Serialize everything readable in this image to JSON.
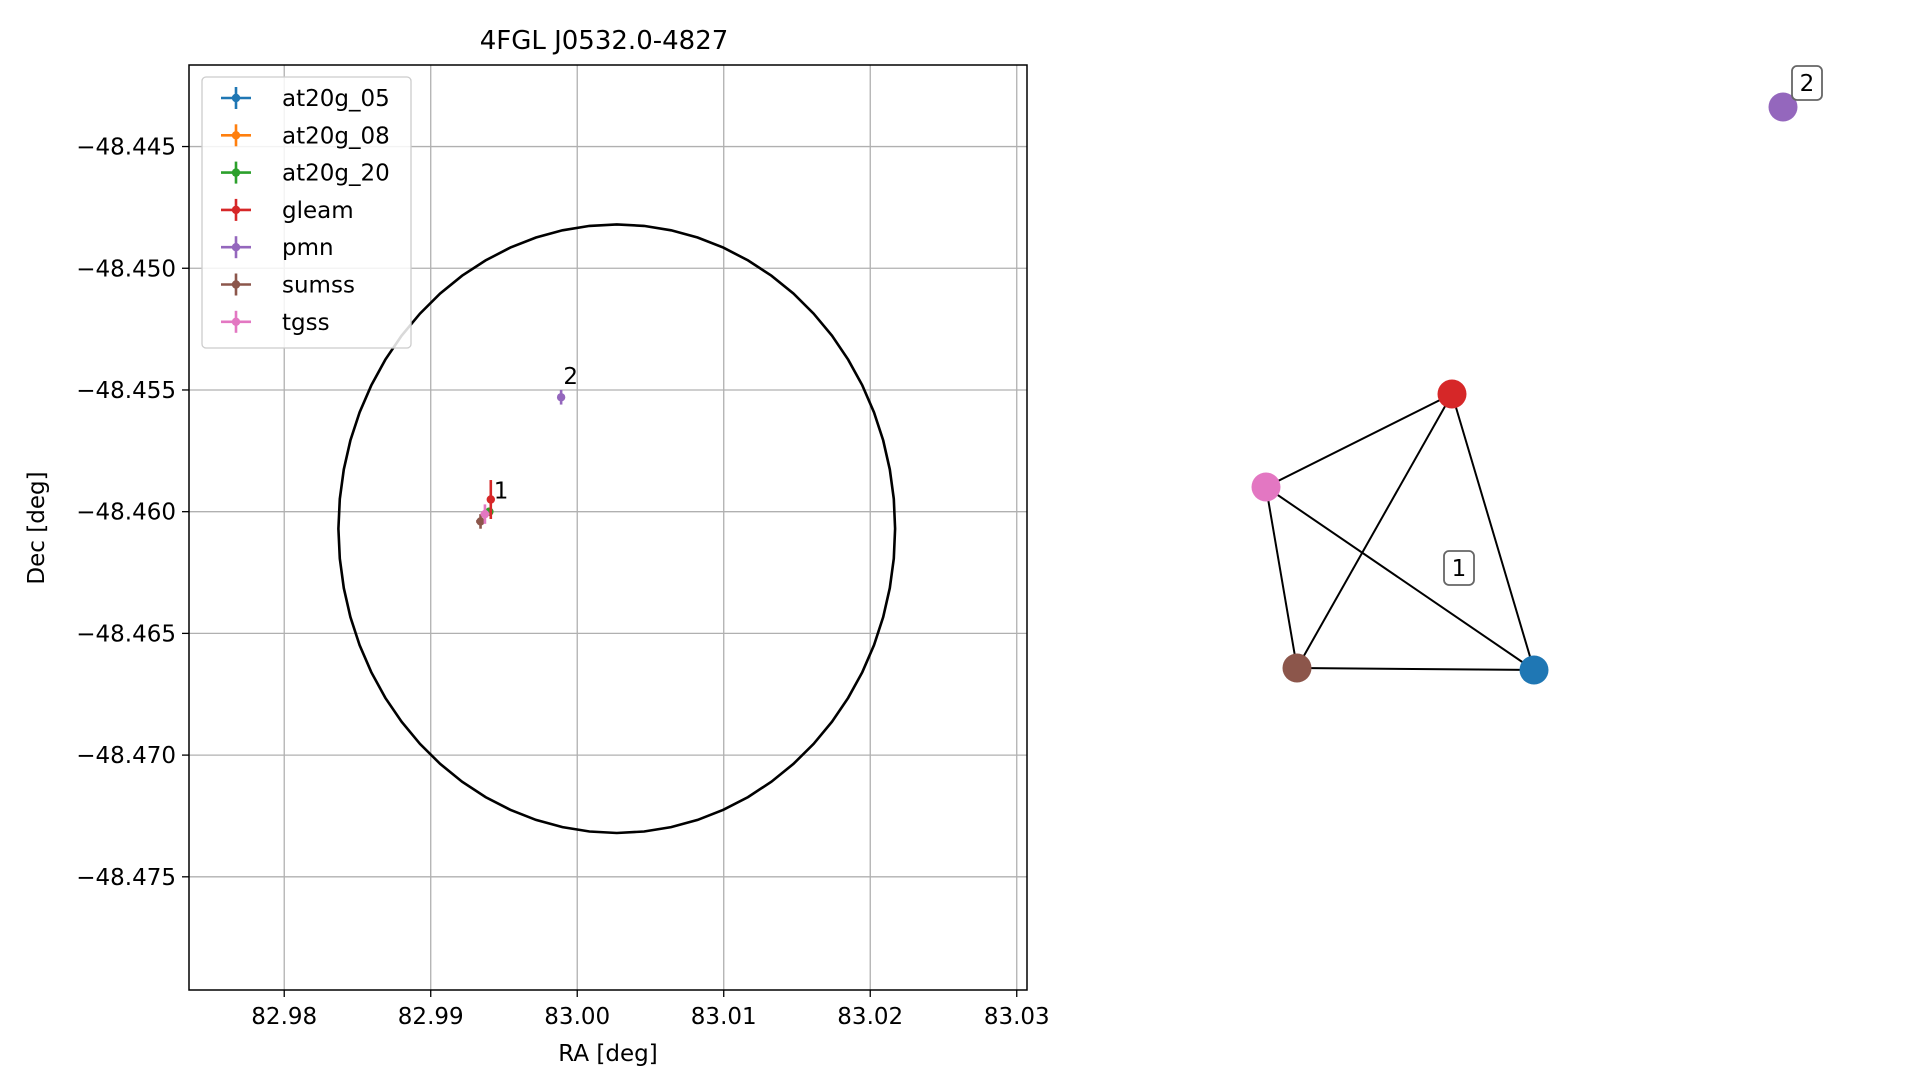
{
  "chart_data": [
    {
      "type": "scatter",
      "title": "4FGL J0532.0-4827",
      "xlabel": "RA [deg]",
      "ylabel": "Dec [deg]",
      "xlim": [
        82.9735,
        83.0307
      ],
      "ylim": [
        -48.47965,
        -48.44165
      ],
      "xticks": [
        82.98,
        82.99,
        83.0,
        83.01,
        83.02,
        83.03
      ],
      "xtick_labels": [
        "82.98",
        "82.99",
        "83.00",
        "83.01",
        "83.02",
        "83.03"
      ],
      "yticks": [
        -48.445,
        -48.45,
        -48.455,
        -48.46,
        -48.465,
        -48.47,
        -48.475
      ],
      "ytick_labels": [
        "−48.445",
        "−48.450",
        "−48.455",
        "−48.460",
        "−48.465",
        "−48.470",
        "−48.475"
      ],
      "grid": true,
      "legend_position": "top-left",
      "error_circle": {
        "center_ra": 83.0027,
        "center_dec": -48.4607,
        "radius_ra": 0.019,
        "radius_dec": 0.0125
      },
      "series": [
        {
          "name": "at20g_05",
          "color": "#1f77b4",
          "points": [
            {
              "ra": 82.994,
              "dec": -48.46,
              "ra_err": 0.0001,
              "dec_err": 0.0001
            }
          ]
        },
        {
          "name": "at20g_08",
          "color": "#ff7f0e",
          "points": [
            {
              "ra": 82.994,
              "dec": -48.46,
              "ra_err": 0.0001,
              "dec_err": 0.0001
            }
          ]
        },
        {
          "name": "at20g_20",
          "color": "#2ca02c",
          "points": [
            {
              "ra": 82.994,
              "dec": -48.46,
              "ra_err": 0.0001,
              "dec_err": 0.0001
            }
          ]
        },
        {
          "name": "gleam",
          "color": "#d62728",
          "points": [
            {
              "ra": 82.9941,
              "dec": -48.4595,
              "ra_err": 0.0002,
              "dec_err": 0.0008
            }
          ]
        },
        {
          "name": "pmn",
          "color": "#9467bd",
          "points": [
            {
              "ra": 82.9989,
              "dec": -48.4553,
              "ra_err": 0.0001,
              "dec_err": 0.0003
            }
          ]
        },
        {
          "name": "sumss",
          "color": "#8c564b",
          "points": [
            {
              "ra": 82.9934,
              "dec": -48.4604,
              "ra_err": 0.0003,
              "dec_err": 0.0003
            }
          ]
        },
        {
          "name": "tgss",
          "color": "#e377c2",
          "points": [
            {
              "ra": 82.9937,
              "dec": -48.4601,
              "ra_err": 0.0003,
              "dec_err": 0.0004
            }
          ]
        }
      ],
      "annotations": [
        {
          "text": "1",
          "ra": 82.9943,
          "dec": -48.45945
        },
        {
          "text": "2",
          "ra": 82.99905,
          "dec": -48.45475
        }
      ]
    },
    {
      "type": "network",
      "nodes": [
        {
          "id": "gleam",
          "color": "#d62728"
        },
        {
          "id": "tgss",
          "color": "#e377c2"
        },
        {
          "id": "sumss",
          "color": "#8c564b"
        },
        {
          "id": "at20g_05",
          "color": "#1f77b4"
        },
        {
          "id": "pmn",
          "color": "#9467bd"
        }
      ],
      "edges": [
        [
          "gleam",
          "tgss"
        ],
        [
          "gleam",
          "sumss"
        ],
        [
          "gleam",
          "at20g_05"
        ],
        [
          "tgss",
          "sumss"
        ],
        [
          "tgss",
          "at20g_05"
        ],
        [
          "sumss",
          "at20g_05"
        ]
      ],
      "group_labels": [
        "1",
        "2"
      ]
    }
  ]
}
